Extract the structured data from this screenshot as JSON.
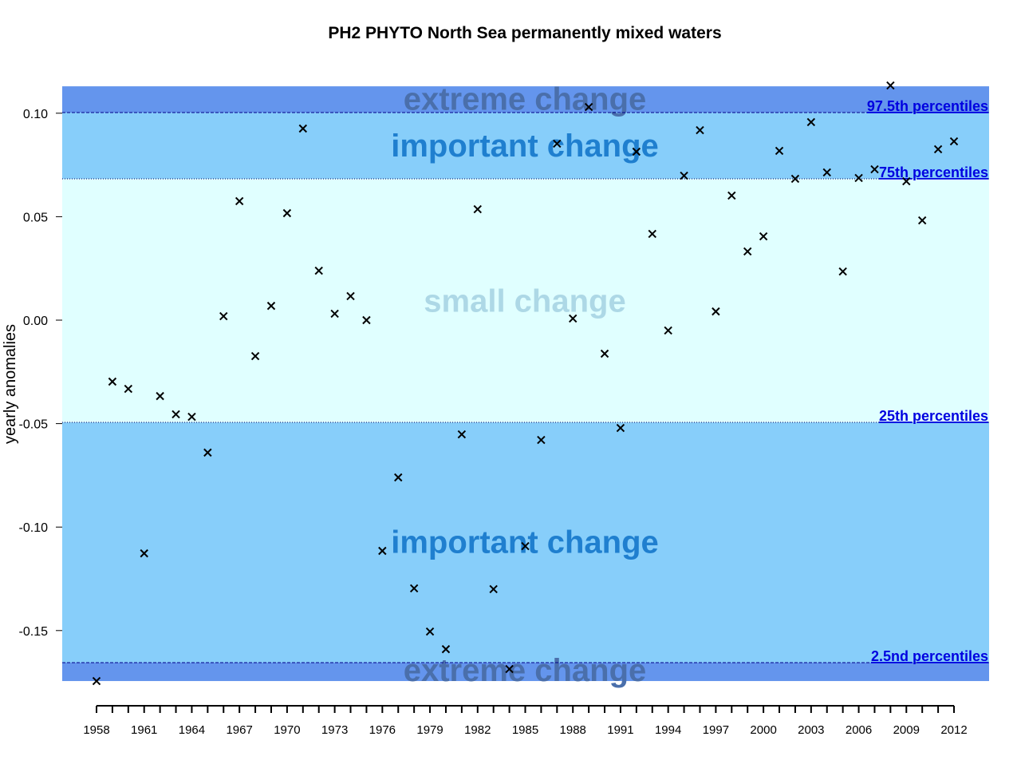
{
  "chart_data": {
    "type": "scatter",
    "title": "PH2 PHYTO North Sea permanently mixed waters",
    "xlabel": "",
    "ylabel": "yearly anomalies",
    "xlim": [
      1958,
      2012
    ],
    "ylim": [
      -0.1744,
      0.113
    ],
    "y_ticks": [
      0.1,
      0.05,
      0.0,
      -0.05,
      -0.1,
      -0.15
    ],
    "y_tick_labels": [
      "0.10",
      "0.05",
      "0.00",
      "-0.05",
      "-0.10",
      "-0.15"
    ],
    "x_tick_labels": [
      "1958",
      "1961",
      "1964",
      "1967",
      "1970",
      "1973",
      "1976",
      "1979",
      "1982",
      "1985",
      "1988",
      "1991",
      "1994",
      "1997",
      "2000",
      "2003",
      "2006",
      "2009",
      "2012"
    ],
    "grid": false,
    "thresholds": [
      {
        "label": "97.5th percentiles",
        "value": 0.1003
      },
      {
        "label": "75th percentiles",
        "value": 0.0683
      },
      {
        "label": "25th percentiles",
        "value": -0.0494
      },
      {
        "label": "2.5nd percentiles",
        "value": -0.1655
      }
    ],
    "zones": [
      {
        "label": "extreme change",
        "from": 0.1003,
        "to": 0.113,
        "color": "#6495ED",
        "text_color": "#4a6fab",
        "label_value": 0.107
      },
      {
        "label": "important change",
        "from": 0.0683,
        "to": 0.1003,
        "color": "#87CEFA",
        "text_color": "#1f7fcf",
        "label_value": 0.0845
      },
      {
        "label": "small change",
        "from": -0.0494,
        "to": 0.0683,
        "color": "#E0FFFF",
        "text_color": "#add8e6",
        "label_value": 0.0095
      },
      {
        "label": "important change",
        "from": -0.1655,
        "to": -0.0494,
        "color": "#87CEFA",
        "text_color": "#1f7fcf",
        "label_value": -0.107
      },
      {
        "label": "extreme change",
        "from": -0.1744,
        "to": -0.1655,
        "color": "#6495ED",
        "text_color": "#4a6fab",
        "label_value": -0.169
      }
    ],
    "series": [
      {
        "name": "yearly anomalies",
        "marker": "x",
        "x": [
          1958,
          1959,
          1960,
          1961,
          1962,
          1963,
          1964,
          1965,
          1966,
          1967,
          1968,
          1969,
          1970,
          1971,
          1972,
          1973,
          1974,
          1975,
          1976,
          1977,
          1978,
          1979,
          1980,
          1981,
          1982,
          1983,
          1984,
          1985,
          1986,
          1987,
          1988,
          1989,
          1990,
          1991,
          1992,
          1993,
          1994,
          1995,
          1996,
          1997,
          1998,
          1999,
          2000,
          2001,
          2002,
          2003,
          2004,
          2005,
          2006,
          2007,
          2008,
          2009,
          2010,
          2011,
          2012
        ],
        "y": [
          -0.1744,
          -0.0297,
          -0.0332,
          -0.1127,
          -0.0367,
          -0.0455,
          -0.0467,
          -0.064,
          0.0019,
          0.0575,
          -0.0174,
          0.0069,
          0.0517,
          0.0926,
          0.0239,
          0.0031,
          0.0116,
          0.0,
          -0.1115,
          -0.076,
          -0.1296,
          -0.1505,
          -0.159,
          -0.0552,
          0.0536,
          -0.13,
          -0.1686,
          -0.1092,
          -0.0579,
          0.0853,
          0.0008,
          0.103,
          -0.0162,
          -0.0521,
          0.0814,
          0.0417,
          -0.005,
          0.0698,
          0.0918,
          0.0042,
          0.0602,
          0.0332,
          0.0405,
          0.0818,
          0.0683,
          0.0957,
          0.0714,
          0.0235,
          0.0687,
          0.0729,
          0.1134,
          0.0671,
          0.0482,
          0.0826,
          0.0864
        ]
      }
    ]
  }
}
